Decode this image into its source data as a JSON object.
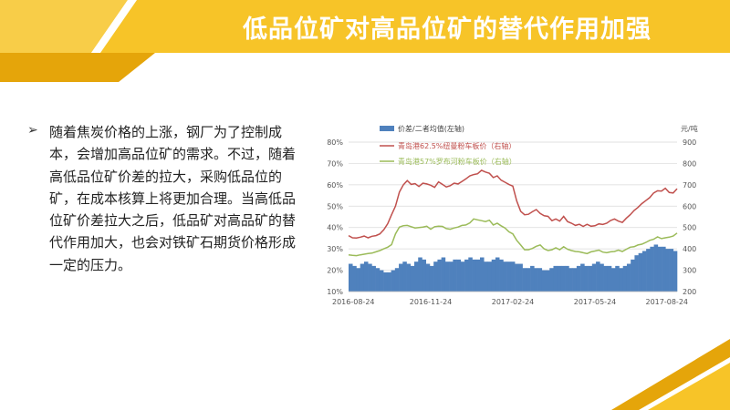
{
  "slide": {
    "title": "低品位矿对高品位矿的替代作用加强",
    "bullet_marker": "➢",
    "bullet_text": "随着焦炭价格的上涨，钢厂为了控制成本，会增加高品位矿的需求。不过，随着高低品位矿价差的拉大，采购低品位的矿，在成本核算上将更加合理。当高低品位矿价差拉大之后，低品矿对高品矿的替代作用加大，也会对铁矿石期货价格形成一定的压力。"
  },
  "colors": {
    "accent_yellow": "#F7C428",
    "accent_dark_yellow": "#E5A50A",
    "bar_blue": "#4F81BD",
    "line_red": "#C0504D",
    "line_green": "#9BBB59"
  },
  "chart_data": {
    "type": "bar+line",
    "right_axis_unit": "元/吨",
    "legend": {
      "placement": "top",
      "bar": "价差/二者均值(左轴)",
      "red": "青岛港62.5%纽曼粉车板价（右轴）",
      "green": "青岛港57%罗布河粉车板价（右轴）"
    },
    "y_left": {
      "min": 10,
      "max": 80,
      "ticks": [
        "80%",
        "70%",
        "60%",
        "50%",
        "40%",
        "30%",
        "20%",
        "10%"
      ]
    },
    "y_right": {
      "min": 200,
      "max": 900,
      "ticks": [
        "900",
        "800",
        "700",
        "600",
        "500",
        "400",
        "300",
        "200"
      ]
    },
    "x_ticks": [
      "2016-08-24",
      "2016-11-24",
      "2017-02-24",
      "2017-05-24",
      "2017-08-24"
    ],
    "gridlines": true,
    "series": [
      {
        "name": "价差/二者均值(左轴)",
        "axis": "left",
        "kind": "bar",
        "values": [
          23,
          22,
          21,
          23,
          24,
          23,
          22,
          21,
          20,
          19,
          19,
          20,
          21,
          23,
          24,
          23,
          22,
          24,
          26,
          25,
          23,
          22,
          24,
          25,
          26,
          24,
          24,
          25,
          25,
          24,
          25,
          26,
          25,
          25,
          26,
          24,
          24,
          25,
          26,
          25,
          24,
          24,
          24,
          23,
          23,
          21,
          21,
          22,
          21,
          21,
          20,
          20,
          21,
          22,
          22,
          22,
          22,
          21,
          21,
          22,
          23,
          22,
          22,
          23,
          24,
          23,
          22,
          22,
          21,
          22,
          21,
          22,
          23,
          25,
          27,
          28,
          29,
          30,
          31,
          32,
          31,
          31,
          30,
          30,
          29
        ]
      },
      {
        "name": "青岛港62.5%纽曼粉车板价（右轴）",
        "axis": "right",
        "kind": "line",
        "values": [
          462,
          452,
          451,
          455,
          460,
          452,
          459,
          462,
          470,
          490,
          518,
          560,
          600,
          666,
          700,
          720,
          702,
          706,
          692,
          708,
          704,
          698,
          688,
          714,
          702,
          690,
          696,
          708,
          704,
          716,
          728,
          742,
          748,
          752,
          768,
          760,
          754,
          734,
          742,
          722,
          712,
          702,
          694,
          624,
          576,
          560,
          562,
          574,
          584,
          566,
          555,
          552,
          532,
          540,
          530,
          552,
          528,
          520,
          510,
          515,
          505,
          515,
          506,
          508,
          517,
          514,
          520,
          533,
          540,
          530,
          524,
          543,
          560,
          580,
          594,
          612,
          626,
          640,
          662,
          672,
          671,
          684,
          664,
          662,
          682
        ]
      },
      {
        "name": "青岛港57%罗布河粉车板价（右轴）",
        "axis": "right",
        "kind": "line",
        "values": [
          372,
          370,
          368,
          372,
          375,
          378,
          380,
          386,
          392,
          400,
          408,
          420,
          470,
          502,
          508,
          510,
          504,
          498,
          500,
          502,
          506,
          492,
          504,
          506,
          505,
          495,
          492,
          498,
          502,
          510,
          512,
          522,
          540,
          536,
          532,
          528,
          534,
          512,
          520,
          508,
          498,
          480,
          470,
          440,
          418,
          396,
          396,
          402,
          412,
          418,
          400,
          392,
          396,
          405,
          396,
          410,
          398,
          392,
          388,
          386,
          382,
          378,
          386,
          390,
          394,
          385,
          382,
          386,
          388,
          394,
          388,
          398,
          408,
          410,
          418,
          422,
          430,
          440,
          445,
          456,
          448,
          452,
          455,
          460,
          474
        ]
      }
    ]
  }
}
